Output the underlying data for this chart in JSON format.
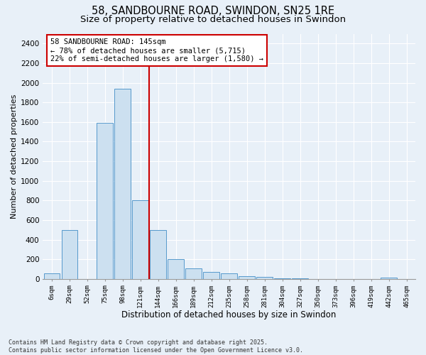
{
  "title": "58, SANDBOURNE ROAD, SWINDON, SN25 1RE",
  "subtitle": "Size of property relative to detached houses in Swindon",
  "xlabel": "Distribution of detached houses by size in Swindon",
  "ylabel": "Number of detached properties",
  "footer_line1": "Contains HM Land Registry data © Crown copyright and database right 2025.",
  "footer_line2": "Contains public sector information licensed under the Open Government Licence v3.0.",
  "bar_labels": [
    "6sqm",
    "29sqm",
    "52sqm",
    "75sqm",
    "98sqm",
    "121sqm",
    "144sqm",
    "166sqm",
    "189sqm",
    "212sqm",
    "235sqm",
    "258sqm",
    "281sqm",
    "304sqm",
    "327sqm",
    "350sqm",
    "373sqm",
    "396sqm",
    "419sqm",
    "442sqm",
    "465sqm"
  ],
  "bar_values": [
    55,
    500,
    0,
    1590,
    1940,
    800,
    500,
    200,
    105,
    75,
    55,
    30,
    18,
    10,
    5,
    3,
    2,
    0,
    0,
    12,
    0
  ],
  "bar_color": "#cce0f0",
  "bar_edge_color": "#5599cc",
  "annotation_text": "58 SANDBOURNE ROAD: 145sqm\n← 78% of detached houses are smaller (5,715)\n22% of semi-detached houses are larger (1,580) →",
  "annotation_box_color": "#ffffff",
  "annotation_box_edge": "#cc0000",
  "vline_color": "#cc0000",
  "ylim": [
    0,
    2500
  ],
  "yticks": [
    0,
    200,
    400,
    600,
    800,
    1000,
    1200,
    1400,
    1600,
    1800,
    2000,
    2200,
    2400
  ],
  "background_color": "#e8f0f8",
  "grid_color": "#ffffff",
  "title_fontsize": 10.5,
  "subtitle_fontsize": 9.5,
  "ylabel_fontsize": 8,
  "xlabel_fontsize": 8.5
}
